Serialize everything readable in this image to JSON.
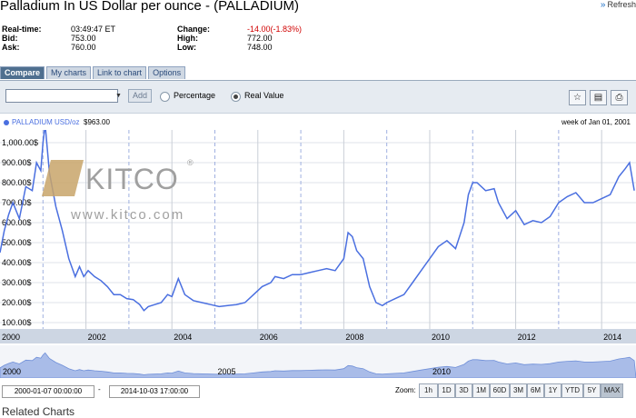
{
  "title": "Palladium In US Dollar per ounce - (PALLADIUM)",
  "refresh_label": "Refresh",
  "quote": {
    "realtime_label": "Real-time:",
    "realtime_value": "03:49:47 ET",
    "bid_label": "Bid:",
    "bid_value": "753.00",
    "ask_label": "Ask:",
    "ask_value": "760.00",
    "change_label": "Change:",
    "change_value": "-14.00(-1.83%)",
    "high_label": "High:",
    "high_value": "772.00",
    "low_label": "Low:",
    "low_value": "748.00"
  },
  "tabs": [
    {
      "label": "Compare"
    },
    {
      "label": "My charts"
    },
    {
      "label": "Link to chart"
    },
    {
      "label": "Options"
    }
  ],
  "toolbar": {
    "symbol_value": "",
    "add_label": "Add",
    "percentage_label": "Percentage",
    "real_value_label": "Real Value",
    "selected_mode": "Real Value",
    "icons": [
      "star-icon",
      "save-icon",
      "print-icon"
    ]
  },
  "legend": {
    "name": "PALLADIUM USD/oz",
    "value": "$963.00",
    "week_of": "week of Jan 01, 2001"
  },
  "watermark": {
    "brand": "KITCO",
    "url": "www.kitco.com"
  },
  "colors": {
    "series": "#4a6fe0",
    "navigator_fill": "#a9bce8",
    "x_axis_band": "#cdd6e3"
  },
  "chart_data": {
    "type": "line",
    "series": [
      {
        "name": "PALLADIUM USD/oz",
        "x": [
          2000.0,
          2000.1,
          2000.2,
          2000.3,
          2000.45,
          2000.6,
          2000.75,
          2000.85,
          2000.95,
          2001.0,
          2001.05,
          2001.15,
          2001.3,
          2001.45,
          2001.6,
          2001.75,
          2001.85,
          2001.95,
          2002.05,
          2002.2,
          2002.35,
          2002.5,
          2002.65,
          2002.8,
          2002.95,
          2003.1,
          2003.25,
          2003.35,
          2003.45,
          2003.6,
          2003.75,
          2003.9,
          2004.0,
          2004.15,
          2004.3,
          2004.5,
          2004.7,
          2004.9,
          2005.1,
          2005.3,
          2005.5,
          2005.7,
          2005.9,
          2006.1,
          2006.3,
          2006.4,
          2006.6,
          2006.8,
          2007.0,
          2007.2,
          2007.4,
          2007.6,
          2007.8,
          2008.0,
          2008.1,
          2008.2,
          2008.3,
          2008.45,
          2008.6,
          2008.75,
          2008.9,
          2009.0,
          2009.2,
          2009.4,
          2009.6,
          2009.8,
          2010.0,
          2010.2,
          2010.4,
          2010.6,
          2010.8,
          2010.9,
          2011.0,
          2011.1,
          2011.3,
          2011.5,
          2011.6,
          2011.8,
          2012.0,
          2012.2,
          2012.4,
          2012.6,
          2012.8,
          2013.0,
          2013.2,
          2013.4,
          2013.6,
          2013.8,
          2014.0,
          2014.2,
          2014.4,
          2014.55,
          2014.65,
          2014.76
        ],
        "y": [
          450,
          560,
          640,
          700,
          620,
          780,
          760,
          900,
          860,
          1000,
          1090,
          850,
          680,
          560,
          420,
          330,
          380,
          330,
          360,
          330,
          310,
          280,
          240,
          240,
          220,
          215,
          190,
          160,
          180,
          190,
          200,
          240,
          230,
          320,
          240,
          210,
          200,
          190,
          180,
          185,
          190,
          200,
          240,
          280,
          300,
          330,
          320,
          340,
          340,
          350,
          360,
          370,
          360,
          420,
          550,
          530,
          460,
          420,
          280,
          200,
          185,
          200,
          220,
          240,
          300,
          360,
          420,
          480,
          510,
          470,
          600,
          740,
          800,
          800,
          760,
          770,
          700,
          620,
          660,
          590,
          610,
          600,
          630,
          700,
          730,
          750,
          700,
          700,
          720,
          740,
          830,
          870,
          900,
          760
        ]
      }
    ],
    "x_ticks": [
      "2000",
      "2002",
      "2004",
      "2006",
      "2008",
      "2010",
      "2012",
      "2014"
    ],
    "y_ticks": [
      "100.00$",
      "200.00$",
      "300.00$",
      "400.00$",
      "500.00$",
      "600.00$",
      "700.00$",
      "800.00$",
      "900.00$",
      "1,000.00$"
    ],
    "xlim": [
      2000,
      2014.8
    ],
    "ylim": [
      100,
      1000
    ],
    "navigator_labels": [
      "2000",
      "2005",
      "2010"
    ]
  },
  "range": {
    "from": "2000-01-07 00:00:00",
    "separator": "-",
    "to": "2014-10-03 17:00:00"
  },
  "zoom": {
    "label": "Zoom:",
    "options": [
      "1h",
      "1D",
      "3D",
      "1M",
      "60D",
      "3M",
      "6M",
      "1Y",
      "YTD",
      "5Y",
      "MAX"
    ],
    "selected": "MAX"
  },
  "related_title": "Related Charts"
}
